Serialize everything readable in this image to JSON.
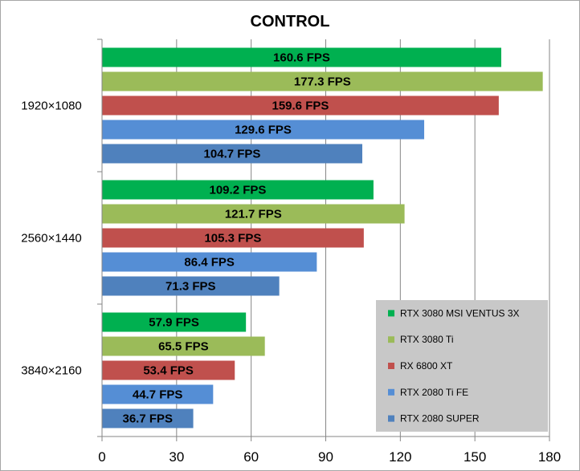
{
  "chart_data": {
    "type": "bar",
    "orientation": "horizontal",
    "title": "CONTROL",
    "categories": [
      "1920×1080",
      "2560×1440",
      "3840×2160"
    ],
    "series": [
      {
        "name": "RTX 3080 MSI VENTUS 3X",
        "color": "#00b050",
        "values": [
          160.6,
          109.2,
          57.9
        ],
        "labels": [
          "160.6 FPS",
          "109.2 FPS",
          "57.9 FPS"
        ]
      },
      {
        "name": "RTX 3080 Ti",
        "color": "#9bbb59",
        "values": [
          177.3,
          121.7,
          65.5
        ],
        "labels": [
          "177.3 FPS",
          "121.7 FPS",
          "65.5 FPS"
        ]
      },
      {
        "name": "RX 6800 XT",
        "color": "#c0504d",
        "values": [
          159.6,
          105.3,
          53.4
        ],
        "labels": [
          "159.6 FPS",
          "105.3 FPS",
          "53.4 FPS"
        ]
      },
      {
        "name": "RTX 2080 Ti FE",
        "color": "#558ed5",
        "values": [
          129.6,
          86.4,
          44.7
        ],
        "labels": [
          "129.6 FPS",
          "86.4 FPS",
          "44.7 FPS"
        ]
      },
      {
        "name": "RTX 2080 SUPER",
        "color": "#4f81bd",
        "values": [
          104.7,
          71.3,
          36.7
        ],
        "labels": [
          "104.7 FPS",
          "71.3 FPS",
          "36.7 FPS"
        ]
      }
    ],
    "xlim": [
      0,
      180
    ],
    "xticks": [
      "0",
      "30",
      "60",
      "90",
      "120",
      "150",
      "180"
    ],
    "grid": true,
    "legend_position": "bottom-right"
  }
}
